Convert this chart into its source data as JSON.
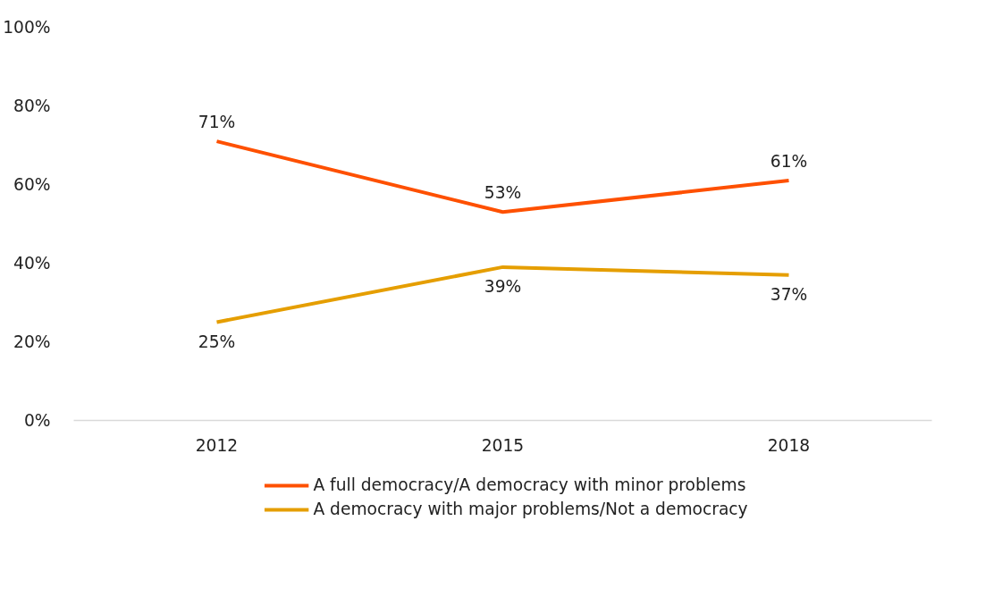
{
  "chart_data": {
    "type": "line",
    "categories": [
      "2012",
      "2015",
      "2018"
    ],
    "series": [
      {
        "name": "A full democracy/A democracy with minor problems",
        "color": "#fe5000",
        "values": [
          71,
          53,
          61
        ],
        "value_labels": [
          "71%",
          "53%",
          "61%"
        ]
      },
      {
        "name": "A democracy with major problems/Not a democracy",
        "color": "#e59e00",
        "values": [
          25,
          39,
          37
        ],
        "value_labels": [
          "25%",
          "39%",
          "37%"
        ]
      }
    ],
    "ylim": [
      0,
      100
    ],
    "yticks": [
      {
        "value": 0,
        "label": "0%"
      },
      {
        "value": 20,
        "label": "20%"
      },
      {
        "value": 40,
        "label": "40%"
      },
      {
        "value": 60,
        "label": "60%"
      },
      {
        "value": 80,
        "label": "80%"
      },
      {
        "value": 100,
        "label": "100%"
      }
    ],
    "grid": false,
    "legend": "bottom",
    "marker": "none",
    "line_style": "solid"
  }
}
